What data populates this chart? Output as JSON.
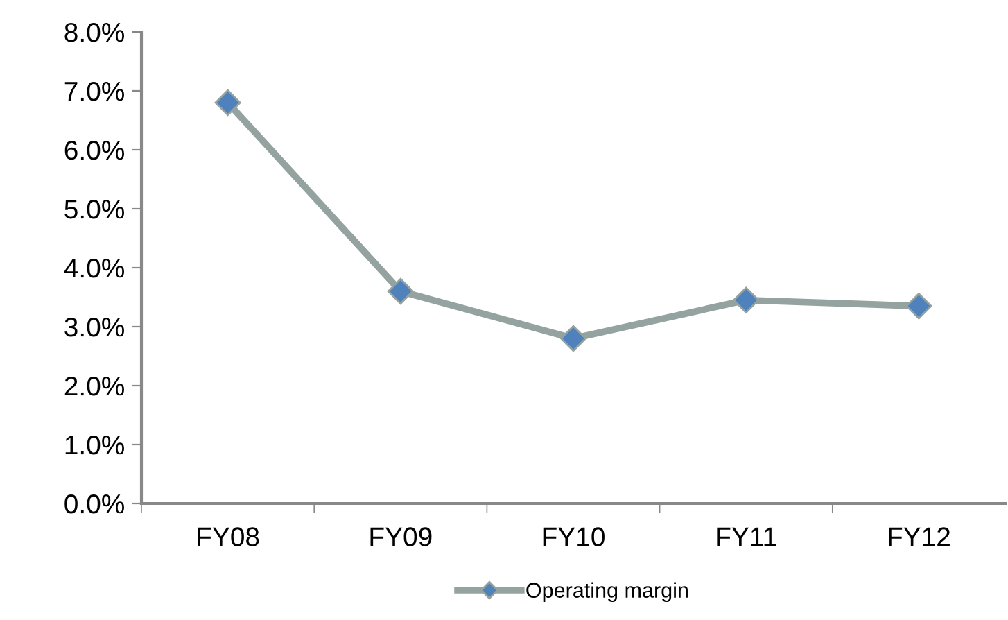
{
  "chart_data": {
    "type": "line",
    "categories": [
      "FY08",
      "FY09",
      "FY10",
      "FY11",
      "FY12"
    ],
    "series": [
      {
        "name": "Operating margin",
        "color": "#95a3a0",
        "values": [
          6.8,
          3.6,
          2.8,
          3.45,
          3.35
        ]
      }
    ],
    "ylim": [
      0,
      8
    ],
    "yticks": [
      {
        "value": 0,
        "label": "0.0%"
      },
      {
        "value": 1,
        "label": "1.0%"
      },
      {
        "value": 2,
        "label": "2.0%"
      },
      {
        "value": 3,
        "label": "3.0%"
      },
      {
        "value": 4,
        "label": "4.0%"
      },
      {
        "value": 5,
        "label": "5.0%"
      },
      {
        "value": 6,
        "label": "6.0%"
      },
      {
        "value": 7,
        "label": "7.0%"
      },
      {
        "value": 8,
        "label": "8.0%"
      }
    ],
    "marker": "diamond",
    "grid": false,
    "legend": "bottom"
  }
}
